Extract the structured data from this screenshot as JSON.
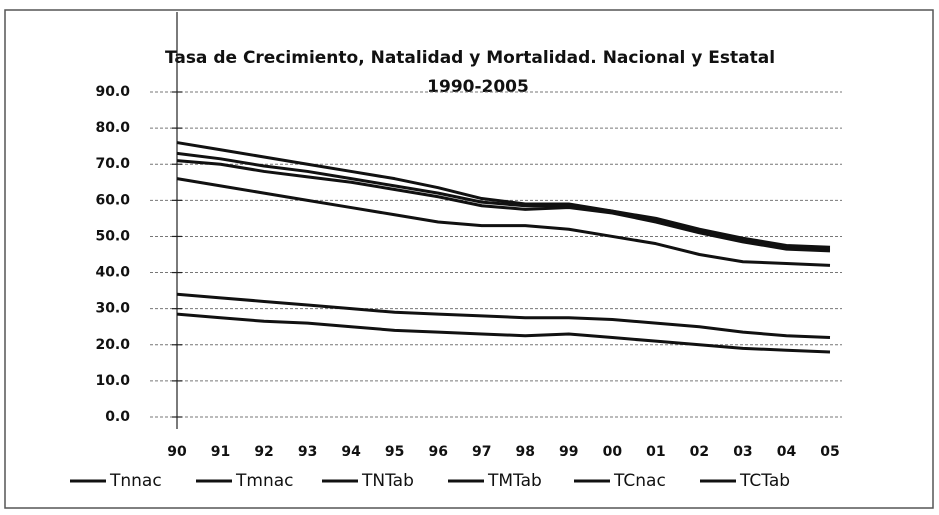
{
  "chart_data": {
    "type": "line",
    "title": "Tasa de Crecimiento, Natalidad y Mortalidad. Nacional y Estatal",
    "subtitle": "1990-2005",
    "categories": [
      "90",
      "91",
      "92",
      "93",
      "94",
      "95",
      "96",
      "97",
      "98",
      "99",
      "00",
      "01",
      "02",
      "03",
      "04",
      "05"
    ],
    "series": [
      {
        "name": "Tnnac",
        "color": "#111111",
        "values": [
          76,
          74,
          72,
          70,
          68,
          66,
          63.5,
          60.5,
          59,
          59,
          57,
          55,
          52,
          49.5,
          47.5,
          47
        ]
      },
      {
        "name": "Tmnac",
        "color": "#111111",
        "values": [
          73,
          71.5,
          69.5,
          68,
          66,
          64,
          62,
          59.5,
          58.5,
          58.5,
          57,
          54.5,
          51.5,
          49,
          47,
          46.5
        ]
      },
      {
        "name": "TNTab",
        "color": "#111111",
        "values": [
          71,
          70,
          68,
          66.5,
          65,
          63,
          61,
          58.5,
          57.5,
          58,
          56.5,
          54,
          51,
          48.5,
          46.5,
          46
        ]
      },
      {
        "name": "TMTab",
        "color": "#111111",
        "values": [
          66,
          64,
          62,
          60,
          58,
          56,
          54,
          53,
          53,
          52,
          50,
          48,
          45,
          43,
          42.5,
          42
        ]
      },
      {
        "name": "TCnac",
        "color": "#111111",
        "values": [
          34,
          33,
          32,
          31,
          30,
          29,
          28.5,
          28,
          27.5,
          27.5,
          27,
          26,
          25,
          23.5,
          22.5,
          22
        ]
      },
      {
        "name": "TCTab",
        "color": "#111111",
        "values": [
          28.5,
          27.5,
          26.5,
          26,
          25,
          24,
          23.5,
          23,
          22.5,
          23,
          22,
          21,
          20,
          19,
          18.5,
          18
        ]
      }
    ],
    "ylim": [
      0,
      90
    ],
    "yticks": [
      {
        "value": 0,
        "label": "0.0"
      },
      {
        "value": 10,
        "label": "10.0"
      },
      {
        "value": 20,
        "label": "20.0"
      },
      {
        "value": 30,
        "label": "30.0"
      },
      {
        "value": 40,
        "label": "40.0"
      },
      {
        "value": 50,
        "label": "50.0"
      },
      {
        "value": 60,
        "label": "60.0"
      },
      {
        "value": 70,
        "label": "70.0"
      },
      {
        "value": 80,
        "label": "80.0"
      },
      {
        "value": 90,
        "label": "90.0"
      }
    ],
    "grid": true,
    "legend": "bottom"
  }
}
